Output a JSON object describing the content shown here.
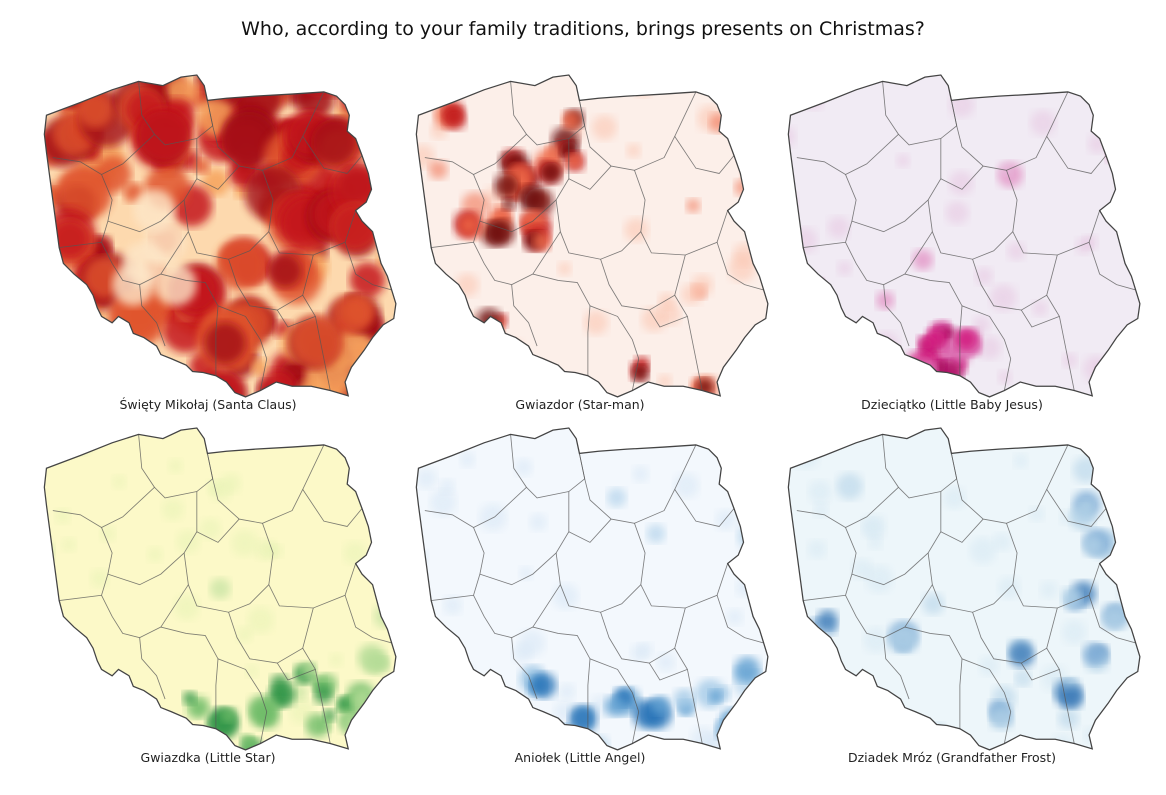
{
  "title": "Who, according to your family traditions, brings presents on Christmas?",
  "maps": [
    {
      "caption": "Święty Mikołaj (Santa Claus)",
      "base_color": "#fdd9ae",
      "palette": [
        "#f6a35c",
        "#e0542d",
        "#c4121a",
        "#a10b14"
      ]
    },
    {
      "caption": "Gwiazdor (Star-man)",
      "base_color": "#fcefe9",
      "palette": [
        "#fbc3ad",
        "#ef6a4a",
        "#c21a1c",
        "#6d0710"
      ]
    },
    {
      "caption": "Dzieciątko (Little Baby Jesus)",
      "base_color": "#f1ebf4",
      "palette": [
        "#e6c6e1",
        "#dd6fb2",
        "#d1147c",
        "#a80861"
      ]
    },
    {
      "caption": "Gwiazdka (Little Star)",
      "base_color": "#fcf9c8",
      "palette": [
        "#e7f3b6",
        "#b4dc96",
        "#6dbb67",
        "#2f9447"
      ]
    },
    {
      "caption": "Aniołek (Little Angel)",
      "base_color": "#f3f8fd",
      "palette": [
        "#d7e6f5",
        "#a3c9e6",
        "#5e9fd0",
        "#2170b5"
      ]
    },
    {
      "caption": "Dziadek Mróz (Grandfather Frost)",
      "base_color": "#edf6fa",
      "palette": [
        "#d6e8f3",
        "#b0d0e6",
        "#7aa9d4",
        "#3e7bb8"
      ]
    }
  ]
}
